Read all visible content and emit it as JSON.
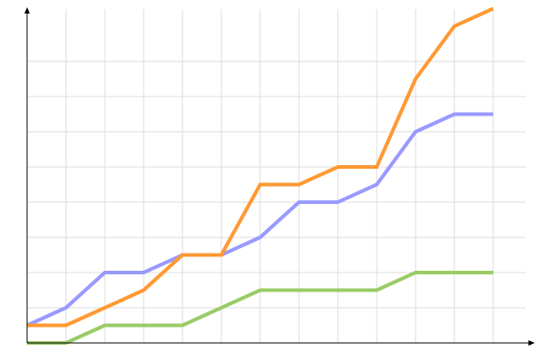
{
  "chart_data": {
    "type": "line",
    "title": "",
    "xlabel": "",
    "ylabel": "",
    "x": [
      0,
      1,
      2,
      3,
      4,
      5,
      6,
      7,
      8,
      9,
      10,
      11,
      12
    ],
    "xlim": [
      0,
      13
    ],
    "ylim": [
      0,
      9.5
    ],
    "grid": true,
    "legend": "none",
    "series": [
      {
        "color": "#9999ff",
        "values": [
          0.5,
          1,
          2,
          2,
          2.5,
          2.5,
          3,
          4,
          4,
          4.5,
          6,
          6.5,
          6.5
        ]
      },
      {
        "color": "#ff9933",
        "values": [
          0.5,
          0.5,
          1,
          1.5,
          2.5,
          2.5,
          4.5,
          4.5,
          5,
          5,
          7.5,
          9,
          9.5
        ]
      },
      {
        "color": "#99cc66",
        "values": [
          0,
          0,
          0.5,
          0.5,
          0.5,
          1,
          1.5,
          1.5,
          1.5,
          1.5,
          2,
          2,
          2
        ]
      }
    ]
  }
}
